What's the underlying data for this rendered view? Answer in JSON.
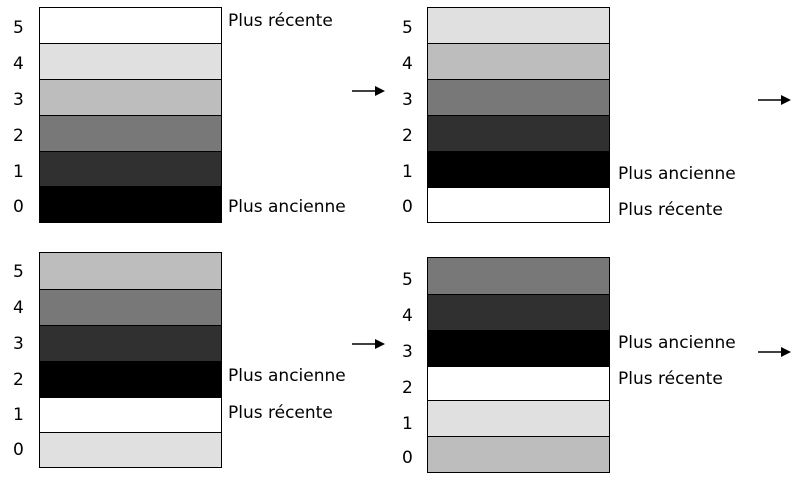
{
  "panels": [
    {
      "id": "top-left",
      "slots": [
        {
          "index": "5",
          "shade": "#ffffff"
        },
        {
          "index": "4",
          "shade": "#e0e0e0"
        },
        {
          "index": "3",
          "shade": "#bdbdbd"
        },
        {
          "index": "2",
          "shade": "#787878"
        },
        {
          "index": "1",
          "shade": "#303030"
        },
        {
          "index": "0",
          "shade": "#000000"
        }
      ],
      "label_recent": "Plus récente",
      "label_oldest": "Plus ancienne"
    },
    {
      "id": "top-right",
      "slots": [
        {
          "index": "5",
          "shade": "#e0e0e0"
        },
        {
          "index": "4",
          "shade": "#bdbdbd"
        },
        {
          "index": "3",
          "shade": "#787878"
        },
        {
          "index": "2",
          "shade": "#303030"
        },
        {
          "index": "1",
          "shade": "#000000"
        },
        {
          "index": "0",
          "shade": "#ffffff"
        }
      ],
      "label_recent": "Plus récente",
      "label_oldest": "Plus ancienne"
    },
    {
      "id": "bottom-left",
      "slots": [
        {
          "index": "5",
          "shade": "#bdbdbd"
        },
        {
          "index": "4",
          "shade": "#787878"
        },
        {
          "index": "3",
          "shade": "#303030"
        },
        {
          "index": "2",
          "shade": "#000000"
        },
        {
          "index": "1",
          "shade": "#ffffff"
        },
        {
          "index": "0",
          "shade": "#e0e0e0"
        }
      ],
      "label_recent": "Plus récente",
      "label_oldest": "Plus ancienne"
    },
    {
      "id": "bottom-right",
      "slots": [
        {
          "index": "5",
          "shade": "#787878"
        },
        {
          "index": "4",
          "shade": "#303030"
        },
        {
          "index": "3",
          "shade": "#000000"
        },
        {
          "index": "2",
          "shade": "#ffffff"
        },
        {
          "index": "1",
          "shade": "#e0e0e0"
        },
        {
          "index": "0",
          "shade": "#bdbdbd"
        }
      ],
      "label_recent": "Plus récente",
      "label_oldest": "Plus ancienne"
    }
  ],
  "arrow_icon": "right-arrow-icon"
}
